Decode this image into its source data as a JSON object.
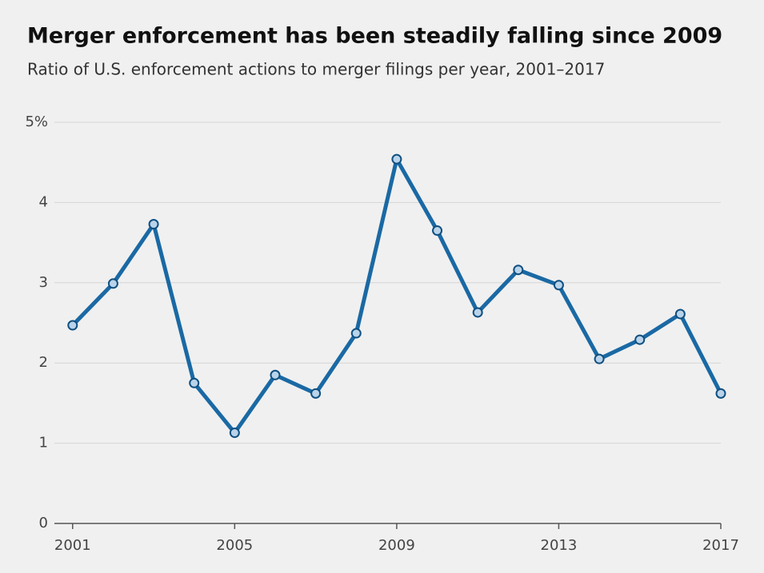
{
  "chart_data": {
    "type": "line",
    "title": "Merger enforcement has been steadily falling since 2009",
    "subtitle": "Ratio of U.S. enforcement actions to merger filings per year, 2001–2017",
    "x": [
      2001,
      2002,
      2003,
      2004,
      2005,
      2006,
      2007,
      2008,
      2009,
      2010,
      2011,
      2012,
      2013,
      2014,
      2015,
      2016,
      2017
    ],
    "series": [
      {
        "color": "#1a69a4",
        "values": [
          2.47,
          2.99,
          3.73,
          1.75,
          1.13,
          1.85,
          1.62,
          2.37,
          4.54,
          3.65,
          2.63,
          3.16,
          2.97,
          2.05,
          2.29,
          2.61,
          1.62
        ]
      }
    ],
    "xlim": [
      2000.55,
      2017
    ],
    "xticks": [
      2001,
      2005,
      2009,
      2013,
      2017
    ],
    "ylim": [
      0,
      5
    ],
    "yticks": [
      0,
      1,
      2,
      3,
      4,
      {
        "value": 5,
        "label": "5%"
      }
    ],
    "grid": true
  }
}
